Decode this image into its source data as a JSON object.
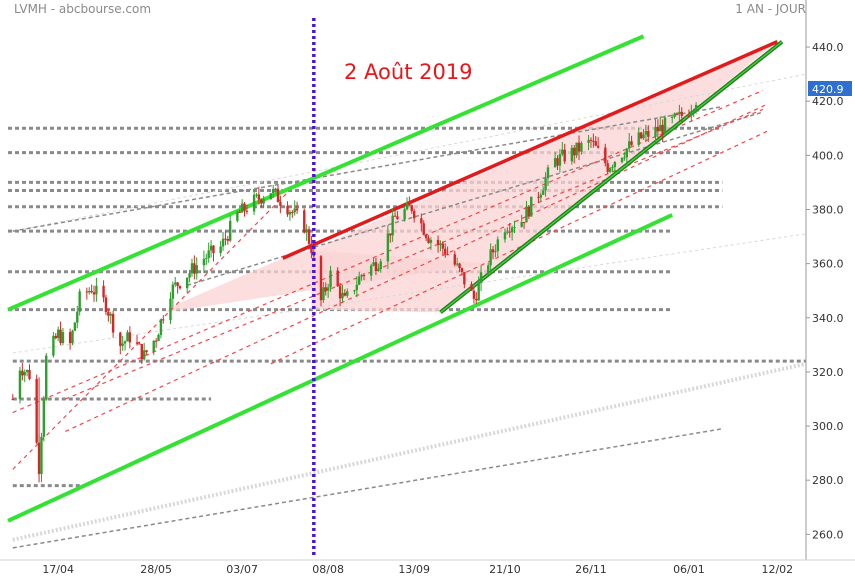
{
  "header": {
    "symbol_source": "LVMH - abcbourse.com",
    "period": "1 AN - JOUR"
  },
  "annotation": "2 Août 2019",
  "last_price": "420.9",
  "colors": {
    "green_channel": "#33e233",
    "dark_green": "#2c7a23",
    "red_line": "#e31a1c",
    "red_dashed": "#f0484a",
    "purple_marker": "#4b16c9",
    "gray_level": "#8a8a8a",
    "light_trend": "#d8d8d8",
    "candle_up": "#2ca02c",
    "candle_down": "#d62728",
    "wedge_fill": "#fbd3d3",
    "price_tag": "#2f6fd1"
  },
  "chart_data": {
    "type": "candlestick",
    "title": "LVMH",
    "ylim": [
      252,
      450
    ],
    "y_ticks": [
      260,
      280,
      300,
      320,
      340,
      360,
      380,
      400,
      420,
      440
    ],
    "y_tick_labels": [
      "260.0",
      "280.0",
      "300.0",
      "320.0",
      "340.0",
      "360.0",
      "380.0",
      "400.0",
      "420.0",
      "440.0"
    ],
    "x_range": [
      "2019-03-27",
      "2020-02-24"
    ],
    "x_ticks": [
      "2019-04-17",
      "2019-05-28",
      "2019-07-03",
      "2019-08-08",
      "2019-09-13",
      "2019-10-21",
      "2019-11-26",
      "2020-01-06",
      "2020-02-12"
    ],
    "x_tick_labels": [
      "17/04",
      "28/05",
      "03/07",
      "08/08",
      "13/09",
      "21/10",
      "26/11",
      "06/01",
      "12/02"
    ],
    "price_path": [
      [
        "2019-03-29",
        310
      ],
      [
        "2019-04-01",
        322
      ],
      [
        "2019-04-05",
        319
      ],
      [
        "2019-04-09",
        285
      ],
      [
        "2019-04-12",
        325
      ],
      [
        "2019-04-17",
        334
      ],
      [
        "2019-04-22",
        330
      ],
      [
        "2019-04-26",
        347
      ],
      [
        "2019-05-01",
        351
      ],
      [
        "2019-05-07",
        345
      ],
      [
        "2019-05-13",
        330
      ],
      [
        "2019-05-17",
        333
      ],
      [
        "2019-05-23",
        326
      ],
      [
        "2019-05-28",
        333
      ],
      [
        "2019-06-03",
        350
      ],
      [
        "2019-06-10",
        356
      ],
      [
        "2019-06-17",
        362
      ],
      [
        "2019-06-24",
        366
      ],
      [
        "2019-07-01",
        378
      ],
      [
        "2019-07-08",
        383
      ],
      [
        "2019-07-15",
        387
      ],
      [
        "2019-07-22",
        381
      ],
      [
        "2019-07-29",
        374
      ],
      [
        "2019-08-01",
        366
      ],
      [
        "2019-08-05",
        346
      ],
      [
        "2019-08-09",
        356
      ],
      [
        "2019-08-15",
        346
      ],
      [
        "2019-08-22",
        356
      ],
      [
        "2019-08-29",
        361
      ],
      [
        "2019-09-05",
        377
      ],
      [
        "2019-09-12",
        381
      ],
      [
        "2019-09-19",
        370
      ],
      [
        "2019-09-26",
        365
      ],
      [
        "2019-10-02",
        357
      ],
      [
        "2019-10-08",
        347
      ],
      [
        "2019-10-14",
        361
      ],
      [
        "2019-10-21",
        374
      ],
      [
        "2019-10-28",
        376
      ],
      [
        "2019-11-04",
        386
      ],
      [
        "2019-11-11",
        398
      ],
      [
        "2019-11-18",
        401
      ],
      [
        "2019-11-26",
        405
      ],
      [
        "2019-12-03",
        396
      ],
      [
        "2019-12-09",
        401
      ],
      [
        "2019-12-16",
        406
      ],
      [
        "2019-12-23",
        409
      ],
      [
        "2020-01-02",
        414
      ],
      [
        "2020-01-06",
        417
      ],
      [
        "2020-01-09",
        420.9
      ]
    ],
    "last_value": 420.9,
    "event_marker": {
      "date": "2019-08-02",
      "label": "2 Août 2019"
    },
    "horizontal_levels": [
      {
        "value": 410,
        "from": "2019-03-27",
        "to": "2020-01-20"
      },
      {
        "value": 401,
        "from": "2019-03-27",
        "to": "2020-01-20"
      },
      {
        "value": 390,
        "from": "2019-03-27",
        "to": "2020-01-20"
      },
      {
        "value": 387,
        "from": "2019-03-27",
        "to": "2020-01-20"
      },
      {
        "value": 381,
        "from": "2019-03-27",
        "to": "2020-01-20"
      },
      {
        "value": 372,
        "from": "2019-03-27",
        "to": "2019-12-30"
      },
      {
        "value": 357,
        "from": "2019-03-27",
        "to": "2019-12-30"
      },
      {
        "value": 343,
        "from": "2019-03-27",
        "to": "2019-12-30"
      },
      {
        "value": 324,
        "from": "2019-03-29",
        "to": "2020-02-24"
      },
      {
        "value": 310,
        "from": "2019-03-29",
        "to": "2019-06-20"
      },
      {
        "value": 278,
        "from": "2019-03-29",
        "to": "2019-04-28"
      }
    ],
    "trendlines": {
      "green_channel_upper": [
        [
          "2019-03-27",
          343
        ],
        [
          "2019-12-18",
          444
        ]
      ],
      "green_channel_lower": [
        [
          "2019-03-27",
          265
        ],
        [
          "2019-12-30",
          378
        ]
      ],
      "red_resistance": [
        [
          "2019-07-20",
          362
        ],
        [
          "2020-02-12",
          442
        ]
      ],
      "dark_green_support": [
        [
          "2019-09-24",
          342
        ],
        [
          "2020-02-14",
          442
        ]
      ],
      "red_dashed": [
        [
          [
            "2019-03-29",
            284
          ],
          [
            "2019-07-25",
            389
          ]
        ],
        [
          [
            "2019-03-29",
            305
          ],
          [
            "2020-02-06",
            424
          ]
        ],
        [
          [
            "2019-04-20",
            310
          ],
          [
            "2020-02-06",
            417
          ]
        ],
        [
          [
            "2019-04-20",
            298
          ],
          [
            "2020-02-08",
            419
          ]
        ],
        [
          [
            "2019-07-15",
            323
          ],
          [
            "2020-02-08",
            409
          ]
        ]
      ],
      "gray_dashed": [
        [
          [
            "2019-03-29",
            372
          ],
          [
            "2020-01-20",
            418
          ]
        ],
        [
          [
            "2019-06-10",
            352
          ],
          [
            "2020-02-06",
            416
          ]
        ],
        [
          [
            "2019-03-29",
            255
          ],
          [
            "2020-01-20",
            299
          ]
        ]
      ],
      "light_dotted": [
        [
          [
            "2019-03-29",
            258
          ],
          [
            "2020-02-24",
            323
          ]
        ],
        [
          [
            "2019-03-29",
            372
          ],
          [
            "2020-02-24",
            430
          ]
        ],
        [
          [
            "2019-03-29",
            327
          ],
          [
            "2020-02-24",
            371
          ]
        ]
      ]
    },
    "shaded_regions": [
      [
        [
          "2019-07-20",
          362
        ],
        [
          "2019-08-01",
          365
        ],
        [
          "2019-10-14",
          360
        ],
        [
          "2019-06-01",
          342
        ],
        [
          "2019-06-03",
          344
        ]
      ],
      [
        [
          "2019-08-01",
          365
        ],
        [
          "2020-02-12",
          442
        ],
        [
          "2019-09-24",
          342
        ],
        [
          "2019-08-01",
          343
        ]
      ]
    ]
  }
}
